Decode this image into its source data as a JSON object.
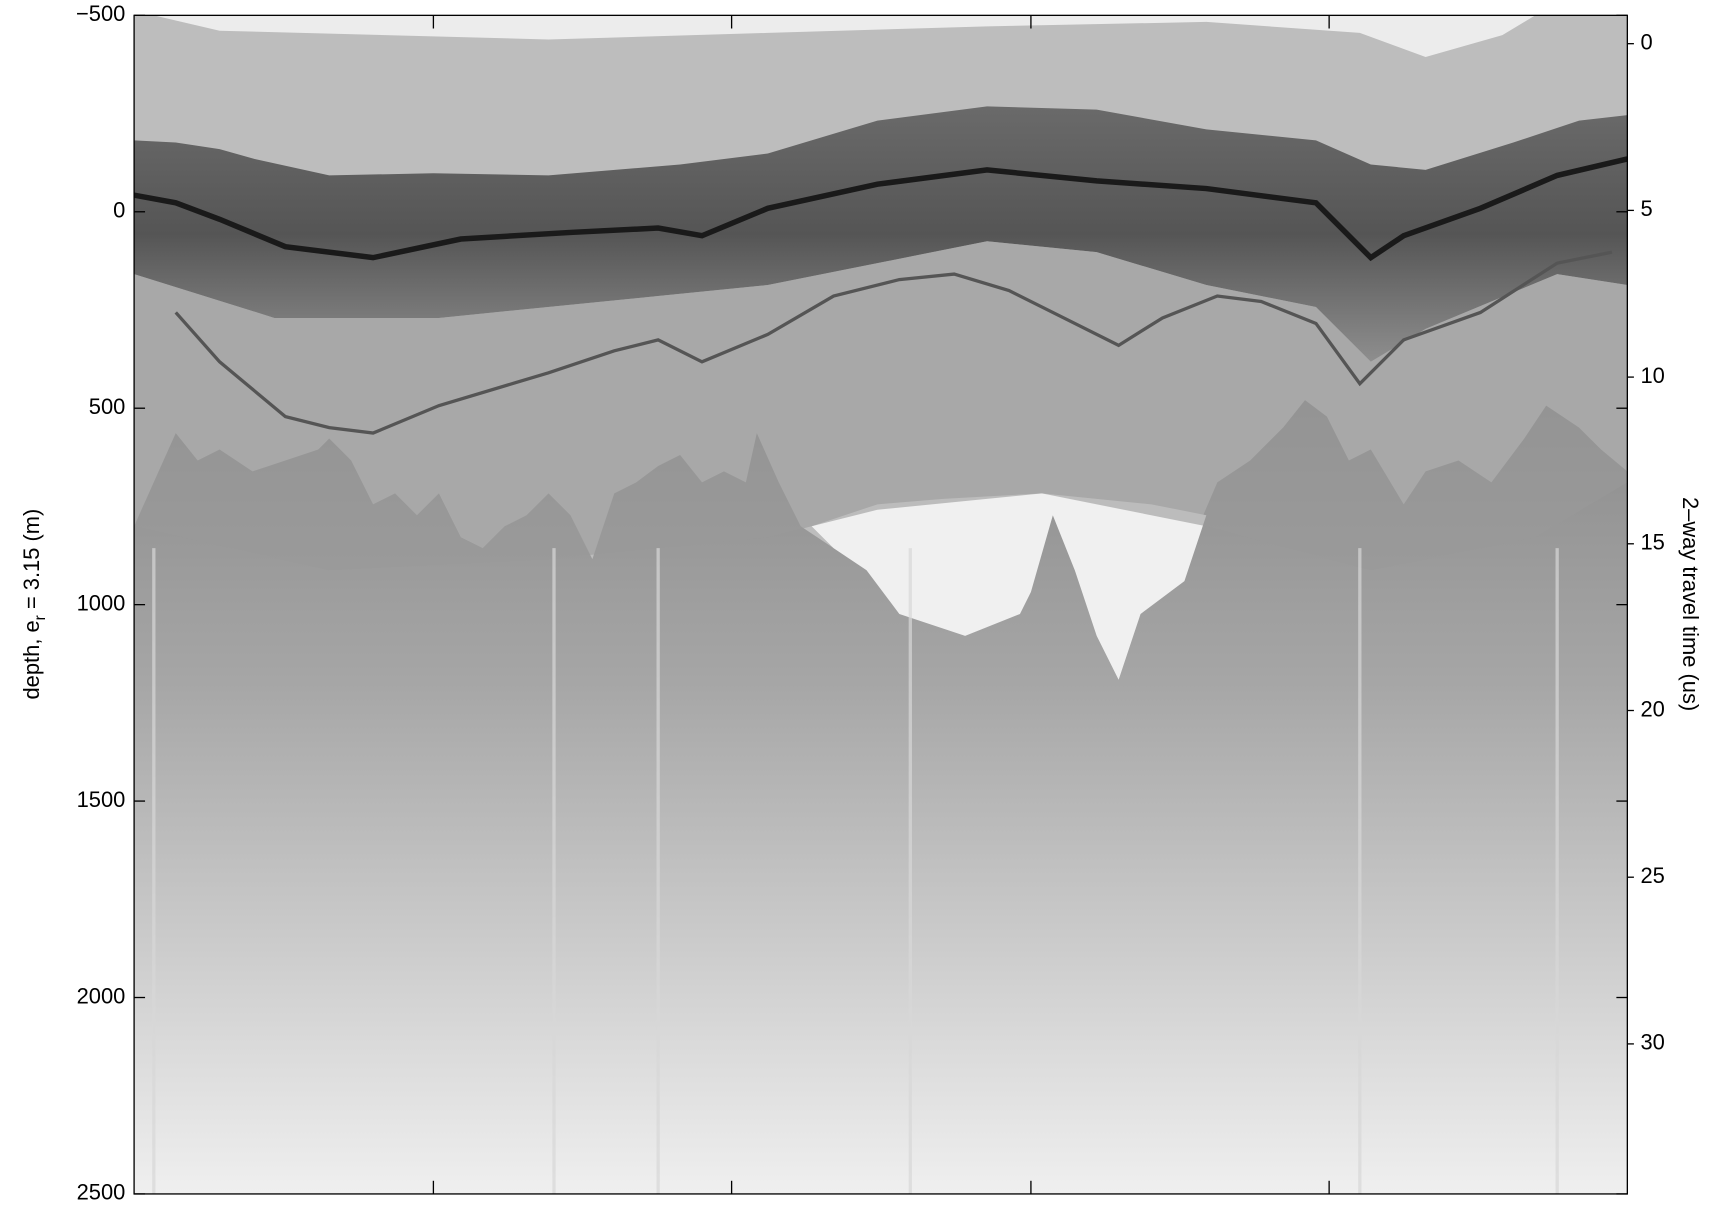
{
  "chart_data": {
    "type": "radargram",
    "ylabel": [
      "depth, e",
      "r",
      " = 3.15 (m)"
    ],
    "y2label": "2–way travel time (us)",
    "ylim": [
      -500,
      2500
    ],
    "yaxis_reversed": true,
    "yticks": [
      {
        "value": -500,
        "label": "−500"
      },
      0,
      500,
      1000,
      1500,
      2000,
      2500
    ],
    "y2lim": [
      -0.85,
      34.5
    ],
    "y2ticks": [
      0,
      5,
      10,
      15,
      20,
      25,
      30
    ]
  }
}
